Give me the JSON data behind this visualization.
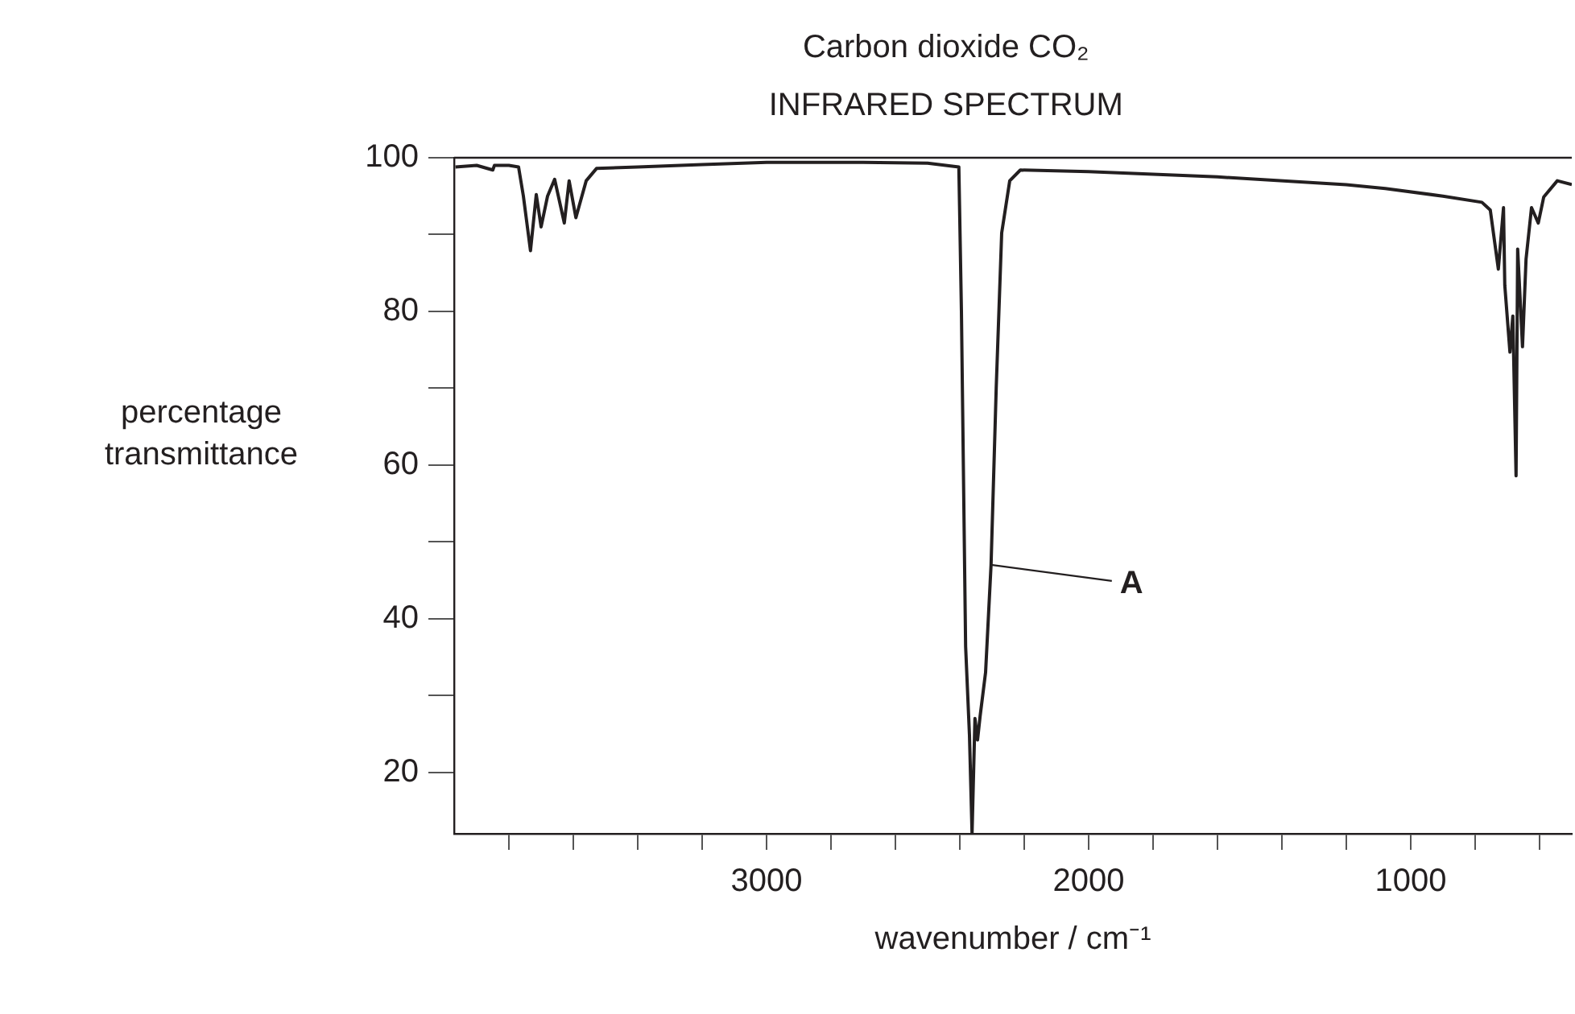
{
  "chart_data": {
    "type": "line",
    "title": "Carbon dioxide CO₂",
    "subtitle": "INFRARED SPECTRUM",
    "xlabel": "wavenumber / cm⁻¹",
    "ylabel": "percentage transmittance",
    "x": [
      3966,
      3900,
      3850,
      3845,
      3800,
      3770,
      3755,
      3733,
      3715,
      3700,
      3680,
      3658,
      3628,
      3613,
      3592,
      3560,
      3528,
      3400,
      3200,
      3000,
      2700,
      2500,
      2403,
      2395,
      2382,
      2370,
      2362,
      2353,
      2345,
      2337,
      2320,
      2303,
      2287,
      2270,
      2245,
      2212,
      2000,
      1600,
      1200,
      1079,
      900,
      779,
      753,
      728,
      712,
      708,
      692,
      683,
      673,
      668,
      653,
      642,
      625,
      604,
      587,
      545,
      500
    ],
    "series": [
      {
        "color": "#231f20",
        "values": [
          98.8,
          99,
          98.4,
          99,
          99,
          98.8,
          95,
          87.9,
          95.2,
          91,
          95,
          97.2,
          91.5,
          97,
          92.2,
          97,
          98.6,
          98.8,
          99.1,
          99.4,
          99.4,
          99.3,
          98.8,
          80,
          36.4,
          24.8,
          12,
          27,
          24.2,
          27.3,
          33,
          47,
          70,
          90.2,
          97,
          98.4,
          98.2,
          97.5,
          96.5,
          96,
          95,
          94.2,
          93.2,
          85.5,
          93.5,
          83.4,
          74.7,
          79.4,
          58.6,
          88.1,
          75.4,
          86.8,
          93.5,
          91.5,
          94.9,
          97,
          96.5
        ]
      }
    ],
    "xlim": [
      3970,
      500
    ],
    "xticks": [
      {
        "value": 3800,
        "label": null
      },
      {
        "value": 3600,
        "label": null
      },
      {
        "value": 3400,
        "label": null
      },
      {
        "value": 3200,
        "label": null
      },
      3000,
      {
        "value": 2800,
        "label": null
      },
      {
        "value": 2600,
        "label": null
      },
      {
        "value": 2400,
        "label": null
      },
      {
        "value": 2200,
        "label": null
      },
      2000,
      {
        "value": 1800,
        "label": null
      },
      {
        "value": 1600,
        "label": null
      },
      {
        "value": 1400,
        "label": null
      },
      {
        "value": 1200,
        "label": null
      },
      1000,
      {
        "value": 800,
        "label": null
      },
      {
        "value": 600,
        "label": null
      }
    ],
    "ylim": [
      12,
      100
    ],
    "yticks": [
      20,
      {
        "value": 30,
        "label": null
      },
      40,
      {
        "value": 50,
        "label": null
      },
      60,
      {
        "value": 70,
        "label": null
      },
      80,
      {
        "value": 90,
        "label": null
      },
      100
    ],
    "grid": false,
    "legend": false,
    "marker": "none",
    "line_style": "solid",
    "annotations": [
      {
        "text": "A",
        "x": 2303,
        "y": 47
      }
    ]
  }
}
